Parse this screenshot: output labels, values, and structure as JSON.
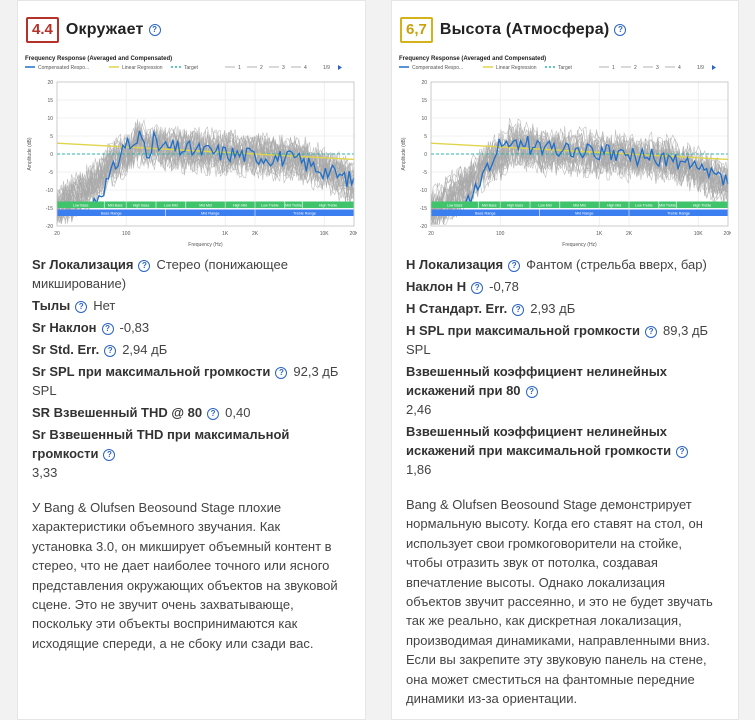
{
  "cards": [
    {
      "score": "4.4",
      "score_color": "#b5322a",
      "title": "Окружает",
      "chart": {
        "title": "Frequency Response (Averaged and Compensated)",
        "legend": [
          "Compensated Respo...",
          "Linear Regression",
          "Target",
          "1",
          "2",
          "3",
          "4",
          "1/9"
        ],
        "ylabel": "Amplitude (dB)",
        "xlabel": "Frequency (Hz)",
        "yticks": [
          "20",
          "15",
          "10",
          "5",
          "0",
          "-5",
          "-10",
          "-15",
          "-20"
        ],
        "xticks": [
          "20",
          "100",
          "1K",
          "2K",
          "10K",
          "20K"
        ],
        "bands_top": [
          "Low Bass",
          "Mid Bass",
          "High Bass",
          "Low Mid",
          "Mid Mid",
          "High Mid",
          "Low Treble",
          "Mid Treble",
          "High Treble"
        ],
        "bands_bottom": [
          "Bass Range",
          "Mid Range",
          "Treble Range"
        ]
      },
      "specs": [
        {
          "label": "Sr Локализация",
          "value": "Стерео (понижающее",
          "value2": "микширование)"
        },
        {
          "label": "Тылы",
          "value": "Нет"
        },
        {
          "label": "Sr Наклон",
          "value": "-0,83"
        },
        {
          "label": "Sr Std. Err.",
          "value": "2,94 дБ"
        },
        {
          "label": "Sr SPL при максимальной громкости",
          "value": "92,3 дБ",
          "value2": "SPL"
        },
        {
          "label": "SR Взвешенный THD @ 80",
          "value": "0,40"
        },
        {
          "label": "Sr Взвешенный THD при максимальной",
          "label2": "громкости",
          "value2": "3,33"
        }
      ],
      "description": [
        "У Bang & Olufsen Beosound Stage плохие",
        "характеристики объемного звучания. Как",
        "установка 3.0, он микширует объемный контент в",
        "стерео, что не дает наиболее точного или ясного",
        "представления окружающих объектов на звуковой",
        "сцене. Это не звучит очень захватывающе,",
        "поскольку эти объекты воспринимаются как",
        "исходящие спереди, а не сбоку или сзади вас."
      ]
    },
    {
      "score": "6,7",
      "score_color": "#d4b21a",
      "title": "Высота (Атмосфера)",
      "chart": {
        "title": "Frequency Response (Averaged and Compensated)",
        "legend": [
          "Compensated Respo...",
          "Linear Regression",
          "Target",
          "1",
          "2",
          "3",
          "4",
          "1/9"
        ],
        "ylabel": "Amplitude (dB)",
        "xlabel": "Frequency (Hz)",
        "yticks": [
          "20",
          "15",
          "10",
          "5",
          "0",
          "-5",
          "-10",
          "-15",
          "-20"
        ],
        "xticks": [
          "20",
          "100",
          "1K",
          "2K",
          "10K",
          "20K"
        ],
        "bands_top": [
          "Low Bass",
          "Mid Bass",
          "High Bass",
          "Low Mid",
          "Mid Mid",
          "High Mid",
          "Low Treble",
          "Mid Treble",
          "High Treble"
        ],
        "bands_bottom": [
          "Bass Range",
          "Mid Range",
          "Treble Range"
        ]
      },
      "specs": [
        {
          "label": "H Локализация",
          "value": "Фантом (стрельба вверх, бар)"
        },
        {
          "label": "Наклон H",
          "value": "-0,78"
        },
        {
          "label": "H Стандарт. Err.",
          "value": "2,93 дБ"
        },
        {
          "label": "H SPL при максимальной громкости",
          "value": "89,3 дБ",
          "value2": "SPL"
        },
        {
          "label": "Взвешенный коэффициент нелинейных",
          "label2": "искажений при 80",
          "value2": "2,46"
        },
        {
          "label": "Взвешенный коэффициент нелинейных",
          "label2": "искажений при максимальной громкости",
          "value2": "1,86"
        }
      ],
      "description": [
        "Bang & Olufsen Beosound Stage демонстрирует",
        "нормальную высоту. Когда его ставят на стол, он",
        "использует свои громкоговорители на стойке,",
        "чтобы отразить звук от потолка, создавая",
        "впечатление высоты. Однако локализация",
        "объектов звучит рассеянно, и это не будет звучать",
        "так же реально, как дискретная локализация,",
        "производимая динамиками, направленными вниз.",
        "Если вы закрепите эту звуковую панель на стене,",
        "она может сместиться на фантомные передние",
        "динамики из-за ориентации."
      ]
    }
  ]
}
